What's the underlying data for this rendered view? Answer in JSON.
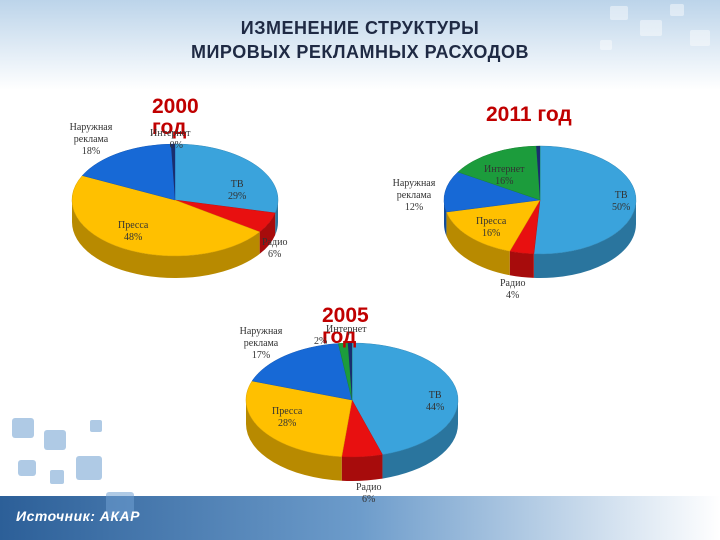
{
  "title_line1": "ИЗМЕНЕНИЕ СТРУКТУРЫ",
  "title_line2": "МИРОВЫХ РЕКЛАМНЫХ РАСХОДОВ",
  "source": "Источник: АКАР",
  "colors": {
    "tv": "#3aa3dc",
    "press": "#ffc000",
    "radio": "#e81010",
    "outdoor": "#1769d6",
    "internet": "#1c9c3c",
    "other": "#1a2e6e",
    "title": "#1f2a44",
    "year": "#c00000"
  },
  "chart_data": [
    {
      "type": "pie",
      "title_line1": "2000",
      "title_line2": "год",
      "slices": [
        {
          "label": "ТВ",
          "value": 29,
          "text": "29%"
        },
        {
          "label": "Радио",
          "value": 6,
          "text": "6%"
        },
        {
          "label": "Пресса",
          "value": 48,
          "text": "48%"
        },
        {
          "label": "Наружная реклама",
          "value": 18,
          "text": "18%"
        },
        {
          "label": "Интернет",
          "value": 0,
          "text": "0%"
        }
      ]
    },
    {
      "type": "pie",
      "title_line1": "2011 год",
      "slices": [
        {
          "label": "ТВ",
          "value": 50,
          "text": "50%"
        },
        {
          "label": "Радио",
          "value": 4,
          "text": "4%"
        },
        {
          "label": "Пресса",
          "value": 16,
          "text": "16%"
        },
        {
          "label": "Наружная реклама",
          "value": 12,
          "text": "12%"
        },
        {
          "label": "Интернет",
          "value": 16,
          "text": "16%"
        }
      ]
    },
    {
      "type": "pie",
      "title_line1": "2005",
      "title_line2": "год",
      "slices": [
        {
          "label": "ТВ",
          "value": 44,
          "text": "44%"
        },
        {
          "label": "Радио",
          "value": 6,
          "text": "6%"
        },
        {
          "label": "Пресса",
          "value": 28,
          "text": "28%"
        },
        {
          "label": "Наружная реклама",
          "value": 17,
          "text": "17%"
        },
        {
          "label": "Интернет",
          "value": 2,
          "text": "2%"
        }
      ]
    }
  ]
}
